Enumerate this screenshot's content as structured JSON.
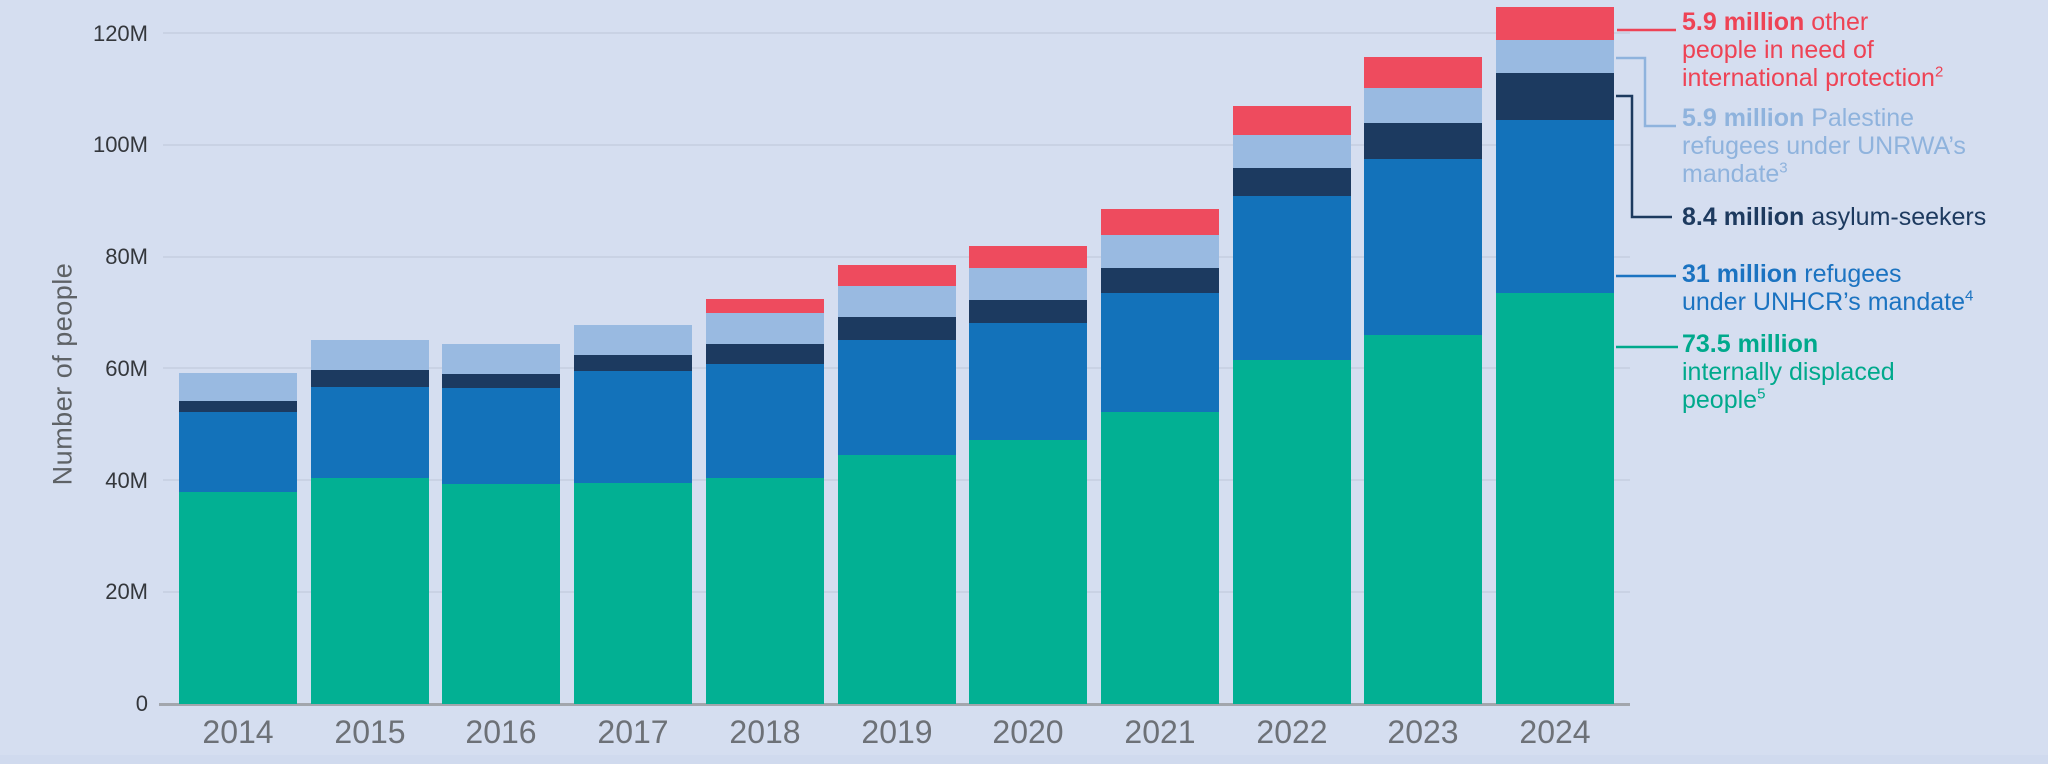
{
  "page": {
    "background": "#d5def0",
    "bottom_strip_color": "#d0daee"
  },
  "chart_data": {
    "type": "bar",
    "stacked": true,
    "title": "",
    "xlabel": "",
    "ylabel": "Number of people",
    "categories": [
      "2014",
      "2015",
      "2016",
      "2017",
      "2018",
      "2019",
      "2020",
      "2021",
      "2022",
      "2023",
      "2024"
    ],
    "series": [
      {
        "key": "idp",
        "name": "Internally displaced people",
        "color": "#02b093",
        "values": [
          38.0,
          40.4,
          39.3,
          39.6,
          40.5,
          44.6,
          47.3,
          52.2,
          61.5,
          66.0,
          73.5
        ]
      },
      {
        "key": "unhcr-refugees",
        "name": "Refugees under UNHCR's mandate",
        "color": "#1372ba",
        "values": [
          14.3,
          16.4,
          17.3,
          20.0,
          20.4,
          20.6,
          20.9,
          21.4,
          29.5,
          31.5,
          31.0
        ]
      },
      {
        "key": "asylum-seekers",
        "name": "Asylum-seekers",
        "color": "#1c3a60",
        "values": [
          1.9,
          3.0,
          2.4,
          2.9,
          3.5,
          4.1,
          4.1,
          4.5,
          5.0,
          6.5,
          8.4
        ]
      },
      {
        "key": "unrwa-refugees",
        "name": "Palestine refugees under UNRWA's mandate",
        "color": "#99bae1",
        "values": [
          5.1,
          5.4,
          5.4,
          5.4,
          5.5,
          5.5,
          5.8,
          5.9,
          5.9,
          6.2,
          5.9
        ]
      },
      {
        "key": "other-protection",
        "name": "Other people in need of international protection",
        "color": "#ee4b5e",
        "values": [
          0,
          0,
          0,
          0,
          2.6,
          3.7,
          3.8,
          4.6,
          5.2,
          5.6,
          5.9
        ]
      }
    ],
    "ylim": [
      0,
      120
    ],
    "yticks": [
      {
        "label": "0",
        "value": 0
      },
      {
        "label": "20M",
        "value": 20
      },
      {
        "label": "40M",
        "value": 40
      },
      {
        "label": "60M",
        "value": 60
      },
      {
        "label": "80M",
        "value": 80
      },
      {
        "label": "100M",
        "value": 100
      },
      {
        "label": "120M",
        "value": 120
      }
    ],
    "grid": true,
    "legend_position": "right"
  },
  "legend": {
    "items": [
      {
        "key": "other-protection",
        "color": "#ee4355",
        "value": "5.9 million",
        "lines": [
          {
            "bold": "5.9 million",
            "text": " other",
            "sup": ""
          },
          {
            "bold": "",
            "text": "people in need of",
            "sup": ""
          },
          {
            "bold": "",
            "text": "international protection",
            "sup": "2"
          }
        ]
      },
      {
        "key": "unrwa-refugees",
        "color": "#8fb3dd",
        "value": "5.9 million",
        "lines": [
          {
            "bold": "5.9 million",
            "text": " Palestine",
            "sup": ""
          },
          {
            "bold": "",
            "text": "refugees under UNRWA’s",
            "sup": ""
          },
          {
            "bold": "",
            "text": "mandate",
            "sup": "3"
          }
        ]
      },
      {
        "key": "asylum-seekers",
        "color": "#1d3a5f",
        "value": "8.4 million",
        "lines": [
          {
            "bold": "8.4 million",
            "text": " asylum-seekers",
            "sup": ""
          }
        ]
      },
      {
        "key": "unhcr-refugees",
        "color": "#1b73c1",
        "value": "31 million",
        "lines": [
          {
            "bold": "31 million",
            "text": " refugees",
            "sup": ""
          },
          {
            "bold": "",
            "text": "under UNHCR’s mandate",
            "sup": "4"
          }
        ]
      },
      {
        "key": "idp",
        "color": "#00a98c",
        "value": "73.5 million",
        "lines": [
          {
            "bold": "73.5 million",
            "text": "",
            "sup": ""
          },
          {
            "bold": "",
            "text": "internally displaced",
            "sup": ""
          },
          {
            "bold": "",
            "text": "people",
            "sup": "5"
          }
        ]
      }
    ]
  },
  "axis_colors": {
    "tick_text": "#34373c",
    "year_text": "#6d7177",
    "grid": "#c9d2e4",
    "baseline": "#a2a6ad",
    "title_text": "#5e6266"
  }
}
